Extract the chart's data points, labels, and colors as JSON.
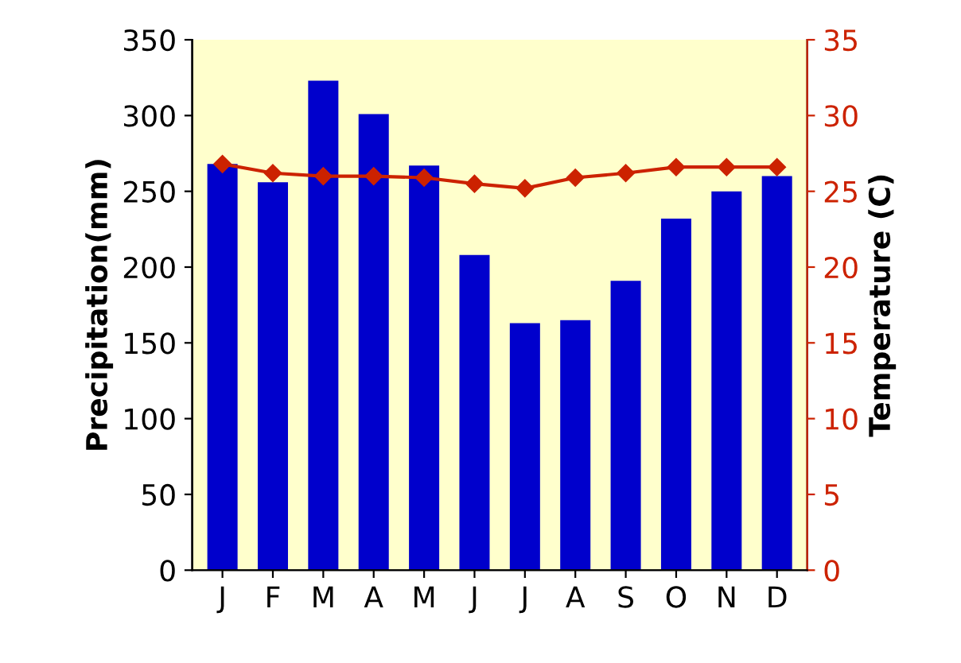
{
  "chart_data": {
    "type": "bar",
    "ylabel": "Precipitation(mm)",
    "y2label": "Temperature (C)",
    "categories": [
      "J",
      "F",
      "M",
      "A",
      "M",
      "J",
      "J",
      "A",
      "S",
      "O",
      "N",
      "D"
    ],
    "series": [
      {
        "color": "#0000cc",
        "values": [
          268,
          256,
          323,
          301,
          267,
          208,
          163,
          165,
          191,
          232,
          250,
          260
        ]
      },
      {
        "type": "line",
        "axis": "y2",
        "color": "#cc2200",
        "marker": "diamond",
        "values": [
          26.8,
          26.2,
          26.0,
          26.0,
          25.9,
          25.5,
          25.2,
          25.9,
          26.2,
          26.6,
          26.6,
          26.6
        ]
      }
    ],
    "ylim": [
      0,
      350
    ],
    "yticks": [
      0,
      50,
      100,
      150,
      200,
      250,
      300,
      350
    ],
    "y2lim": [
      0,
      35
    ],
    "y2ticks": [
      0,
      5,
      10,
      15,
      20,
      25,
      30,
      35
    ],
    "grid": false,
    "legend": false
  }
}
